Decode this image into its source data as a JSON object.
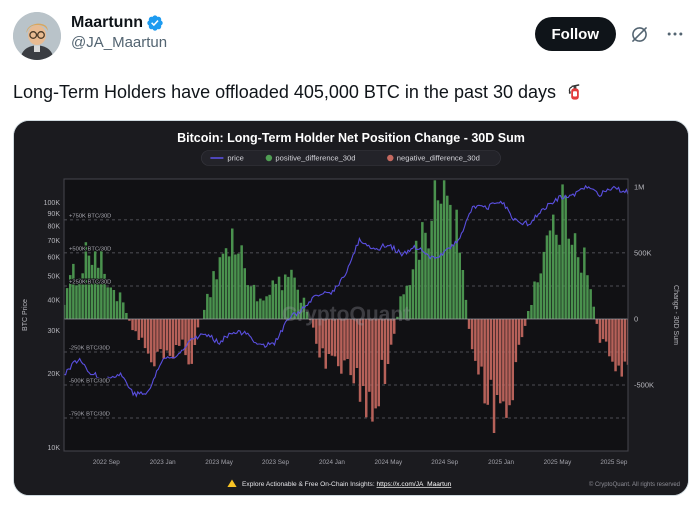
{
  "tweet": {
    "author_name": "Maartunn",
    "handle": "@JA_Maartun",
    "verified": true,
    "follow_label": "Follow",
    "text": "Long-Term Holders have offloaded 405,000 BTC in the past 30 days",
    "emoji": "fire-extinguisher"
  },
  "icons": {
    "verified_badge": "blue-check-seal",
    "grok": "circle-slash",
    "more": "ellipsis-dots",
    "fire_extinguisher": "red-extinguisher",
    "warning": "yellow-triangle"
  },
  "colors": {
    "accent_blue": "#1d9bf0",
    "follow_bg": "#0f1419",
    "price_line": "#5a4fe0",
    "positive": "#4f9d53",
    "negative": "#c4685f",
    "card_bg": "#1b1b1f",
    "plot_bg": "#111114"
  },
  "chart": {
    "title": "Bitcoin: Long-Term Holder Net Position Change - 30D Sum",
    "legend": [
      {
        "label": "price",
        "marker": "line",
        "color": "#5a4fe0"
      },
      {
        "label": "positive_difference_30d",
        "marker": "dot",
        "color": "#4f9d53"
      },
      {
        "label": "negative_difference_30d",
        "marker": "dot",
        "color": "#c4685f"
      }
    ],
    "left_axis_title": "BTC Price",
    "right_axis_title": "Change - 30D Sum",
    "watermark": "CryptoQuant",
    "footer_note_prefix": "Explore Actionable & Free On-Chain Insights: ",
    "footer_note_link": "https://x.com/JA_Maartun",
    "copyright": "© CryptoQuant. All rights reserved"
  },
  "chart_data": {
    "type": "combo",
    "series": [
      {
        "name": "price",
        "type": "line",
        "axis": "left",
        "unit": "USD"
      },
      {
        "name": "positive_difference_30d",
        "type": "bar",
        "axis": "right",
        "unit": "BTC"
      },
      {
        "name": "negative_difference_30d",
        "type": "bar",
        "axis": "right",
        "unit": "BTC"
      }
    ],
    "months": [
      "2022-06",
      "2022-07",
      "2022-08",
      "2022-09",
      "2022-10",
      "2022-11",
      "2022-12",
      "2023-01",
      "2023-02",
      "2023-03",
      "2023-04",
      "2023-05",
      "2023-06",
      "2023-07",
      "2023-08",
      "2023-09",
      "2023-10",
      "2023-11",
      "2023-12",
      "2024-01",
      "2024-02",
      "2024-03",
      "2024-04",
      "2024-05",
      "2024-06",
      "2024-07",
      "2024-08",
      "2024-09",
      "2024-10",
      "2024-11",
      "2024-12",
      "2025-01",
      "2025-02",
      "2025-03",
      "2025-04",
      "2025-05",
      "2025-06",
      "2025-07",
      "2025-08",
      "2025-09",
      "2025-10"
    ],
    "price_usd_k": [
      20,
      23,
      20,
      19,
      20,
      16.5,
      16.8,
      23,
      23.5,
      28,
      29,
      27,
      30,
      29,
      26,
      27,
      34,
      37,
      42,
      43,
      51,
      71,
      64,
      68,
      61,
      66,
      59,
      63,
      70,
      97,
      95,
      102,
      84,
      82,
      94,
      104,
      107,
      115,
      108,
      114,
      110
    ],
    "net_position_change_k_btc": [
      150,
      400,
      550,
      300,
      150,
      -100,
      -250,
      -300,
      -200,
      -280,
      100,
      450,
      600,
      350,
      100,
      250,
      300,
      150,
      -200,
      -350,
      -300,
      -500,
      -650,
      -300,
      200,
      500,
      800,
      1000,
      600,
      -300,
      -600,
      -780,
      -400,
      100,
      500,
      750,
      800,
      400,
      -150,
      -300,
      -405
    ],
    "latest_callout_k_btc": -405,
    "price_axis": {
      "scale": "log",
      "min_k": 9.7,
      "max_k": 125,
      "ticks": [
        {
          "v": 10,
          "label": "10K"
        },
        {
          "v": 20,
          "label": "20K"
        },
        {
          "v": 30,
          "label": "30K"
        },
        {
          "v": 40,
          "label": "40K"
        },
        {
          "v": 50,
          "label": "50K"
        },
        {
          "v": 60,
          "label": "60K"
        },
        {
          "v": 70,
          "label": "70K"
        },
        {
          "v": 80,
          "label": "80K"
        },
        {
          "v": 90,
          "label": "90K"
        },
        {
          "v": 100,
          "label": "100K"
        }
      ]
    },
    "change_axis": {
      "min_k": -1000,
      "max_k": 1060,
      "ticks": [
        {
          "v": 1000,
          "label": "1M"
        },
        {
          "v": 500,
          "label": "500K"
        },
        {
          "v": 0,
          "label": "0"
        },
        {
          "v": -500,
          "label": "-500K"
        }
      ]
    },
    "guide_lines": [
      {
        "v": 750,
        "label": "+750K BTC/30D"
      },
      {
        "v": 500,
        "label": "+500K BTC/30D"
      },
      {
        "v": 250,
        "label": "+250K BTC/30D"
      },
      {
        "v": -250,
        "label": "-250K BTC/30D"
      },
      {
        "v": -500,
        "label": "-500K BTC/30D"
      },
      {
        "v": -750,
        "label": "-750K BTC/30D"
      }
    ],
    "x_ticks": [
      {
        "m": 3,
        "label": "2022 Sep"
      },
      {
        "m": 7,
        "label": "2023 Jan"
      },
      {
        "m": 11,
        "label": "2023 May"
      },
      {
        "m": 15,
        "label": "2023 Sep"
      },
      {
        "m": 19,
        "label": "2024 Jan"
      },
      {
        "m": 23,
        "label": "2024 May"
      },
      {
        "m": 27,
        "label": "2024 Sep"
      },
      {
        "m": 31,
        "label": "2025 Jan"
      },
      {
        "m": 35,
        "label": "2025 May"
      },
      {
        "m": 39,
        "label": "2025 Sep"
      }
    ],
    "grid": false,
    "legend_position": "top-center"
  }
}
